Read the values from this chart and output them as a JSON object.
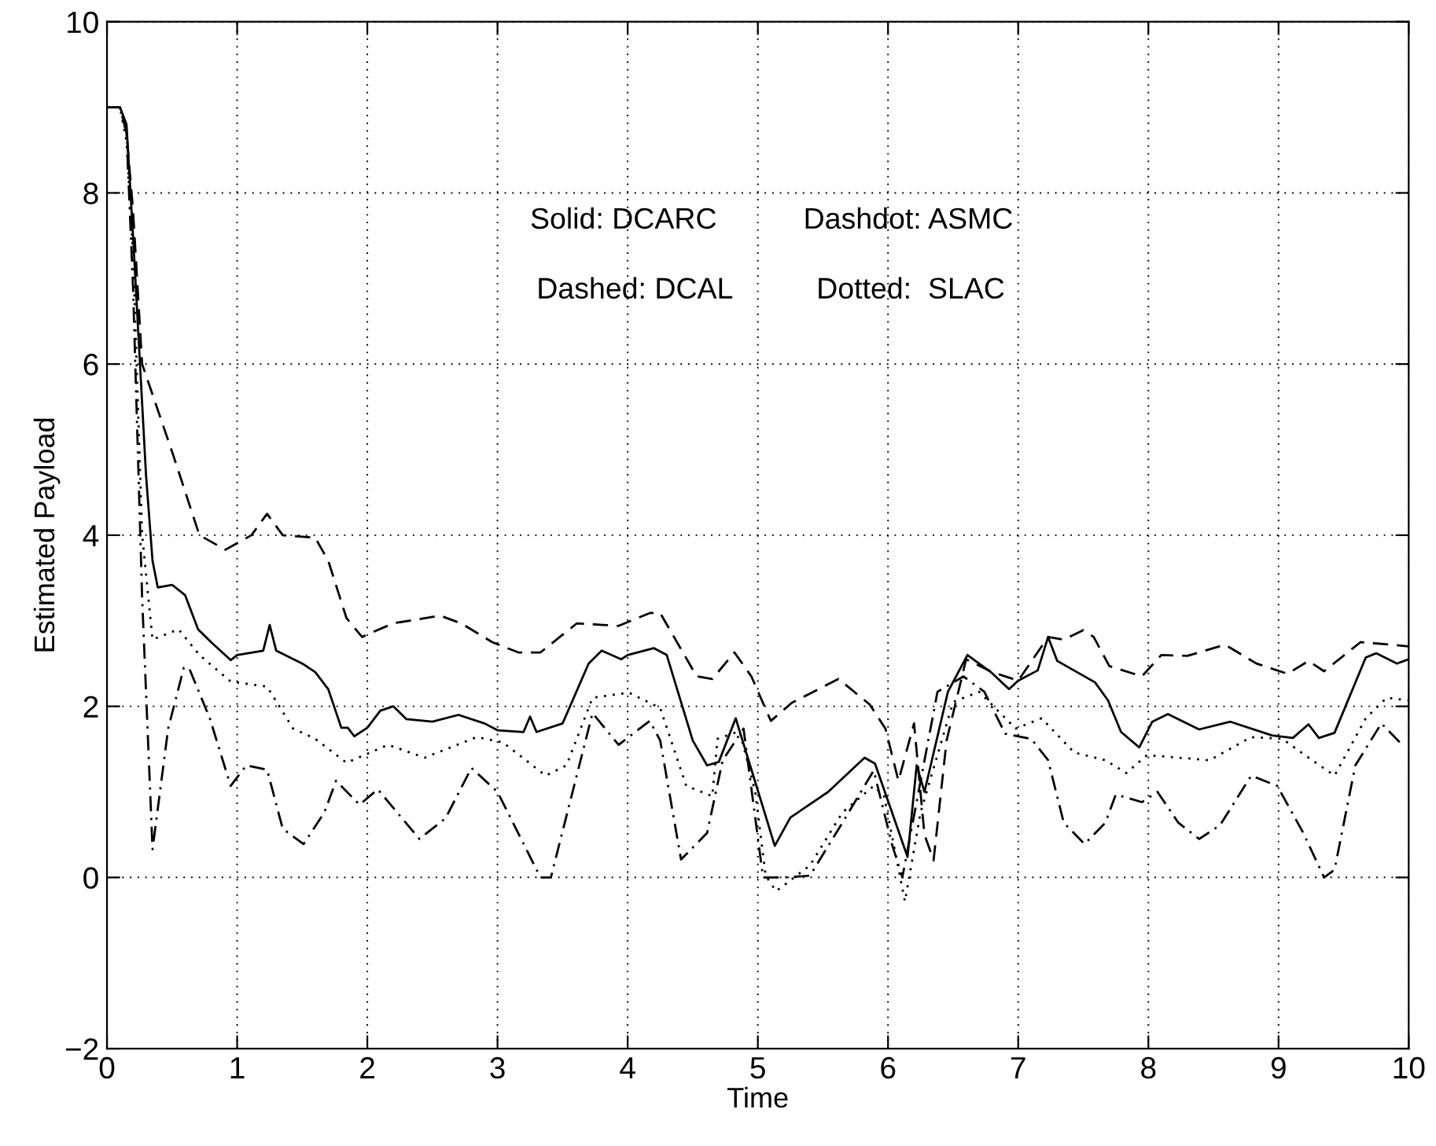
{
  "chart_data": {
    "type": "line",
    "xlabel": "Time",
    "ylabel": "Estimated Payload",
    "xlim": [
      0,
      10
    ],
    "ylim": [
      -2,
      10
    ],
    "xticks": [
      0,
      1,
      2,
      3,
      4,
      5,
      6,
      7,
      8,
      9,
      10
    ],
    "yticks": [
      -2,
      0,
      2,
      4,
      6,
      8,
      10
    ],
    "grid": true,
    "annotations": [
      "Solid: DCARC",
      "Dashdot: ASMC",
      "Dashed: DCAL",
      "Dotted:  SLAC"
    ],
    "series": [
      {
        "color": "#000000",
        "line_style": "solid",
        "x": [
          0,
          0.1,
          0.15,
          0.2,
          0.3,
          0.35,
          0.39,
          0.5,
          0.6,
          0.7,
          0.8,
          0.95,
          1.0,
          1.2,
          1.25,
          1.3,
          1.5,
          1.6,
          1.7,
          1.8,
          1.85,
          1.9,
          2.0,
          2.1,
          2.2,
          2.3,
          2.5,
          2.7,
          2.9,
          3.0,
          3.2,
          3.25,
          3.3,
          3.5,
          3.7,
          3.8,
          3.95,
          4.0,
          4.2,
          4.3,
          4.5,
          4.61,
          4.7,
          4.83,
          5.13,
          5.25,
          5.54,
          5.82,
          5.9,
          6.15,
          6.22,
          6.28,
          6.46,
          6.61,
          6.79,
          6.93,
          7.0,
          7.15,
          7.23,
          7.3,
          7.59,
          7.69,
          7.79,
          7.93,
          8.03,
          8.15,
          8.39,
          8.63,
          8.95,
          9.11,
          9.23,
          9.31,
          9.43,
          9.67,
          9.75,
          9.91,
          10
        ],
        "values": [
          9.0,
          9.0,
          8.8,
          7.5,
          4.7,
          3.7,
          3.39,
          3.42,
          3.3,
          2.9,
          2.75,
          2.54,
          2.6,
          2.65,
          2.95,
          2.65,
          2.5,
          2.4,
          2.2,
          1.75,
          1.75,
          1.65,
          1.75,
          1.95,
          2.0,
          1.85,
          1.82,
          1.9,
          1.8,
          1.72,
          1.7,
          1.88,
          1.7,
          1.8,
          2.5,
          2.65,
          2.55,
          2.6,
          2.68,
          2.6,
          1.6,
          1.31,
          1.35,
          1.86,
          0.37,
          0.7,
          1.0,
          1.4,
          1.33,
          0.24,
          1.31,
          1.0,
          2.17,
          2.6,
          2.4,
          2.2,
          2.3,
          2.42,
          2.81,
          2.53,
          2.28,
          2.07,
          1.7,
          1.52,
          1.82,
          1.91,
          1.73,
          1.82,
          1.66,
          1.63,
          1.79,
          1.63,
          1.69,
          2.57,
          2.62,
          2.5,
          2.55
        ]
      },
      {
        "color": "#000000",
        "line_style": "dashed",
        "x": [
          0,
          0.1,
          0.15,
          0.2,
          0.27,
          0.51,
          0.71,
          0.91,
          1.11,
          1.23,
          1.35,
          1.6,
          1.7,
          1.84,
          1.96,
          2.0,
          2.2,
          2.56,
          2.72,
          2.96,
          3.16,
          3.33,
          3.61,
          3.93,
          4.17,
          4.25,
          4.53,
          4.65,
          4.82,
          4.95,
          5.1,
          5.26,
          5.62,
          5.86,
          5.98,
          6.08,
          6.2,
          6.28,
          6.35,
          6.45,
          6.6,
          6.8,
          7.0,
          7.23,
          7.35,
          7.5,
          7.58,
          7.7,
          7.95,
          8.1,
          8.3,
          8.59,
          8.83,
          9.07,
          9.23,
          9.35,
          9.63,
          9.87,
          10
        ],
        "values": [
          9.0,
          9.0,
          8.7,
          7.8,
          6.0,
          4.93,
          4.0,
          3.83,
          4.0,
          4.25,
          4.0,
          3.97,
          3.7,
          3.03,
          2.81,
          2.84,
          2.97,
          3.06,
          2.97,
          2.75,
          2.63,
          2.63,
          2.97,
          2.94,
          3.09,
          3.09,
          2.35,
          2.32,
          2.63,
          2.35,
          1.83,
          2.04,
          2.32,
          2.02,
          1.74,
          1.13,
          1.8,
          0.5,
          0.2,
          1.6,
          2.55,
          2.4,
          2.3,
          2.81,
          2.78,
          2.89,
          2.81,
          2.47,
          2.35,
          2.6,
          2.59,
          2.72,
          2.5,
          2.38,
          2.53,
          2.41,
          2.75,
          2.72,
          2.7
        ]
      },
      {
        "color": "#000000",
        "line_style": "dashdot",
        "x": [
          0,
          0.1,
          0.15,
          0.2,
          0.27,
          0.35,
          0.47,
          0.59,
          0.63,
          0.79,
          0.95,
          1.07,
          1.23,
          1.35,
          1.51,
          1.67,
          1.76,
          1.94,
          2.08,
          2.4,
          2.6,
          2.8,
          3.0,
          3.33,
          3.41,
          3.73,
          3.93,
          4.17,
          4.25,
          4.41,
          4.61,
          4.73,
          4.89,
          5.04,
          5.2,
          5.4,
          5.65,
          5.89,
          6.03,
          6.11,
          6.38,
          6.58,
          6.74,
          6.9,
          7.1,
          7.23,
          7.35,
          7.51,
          7.67,
          7.75,
          7.95,
          8.07,
          8.23,
          8.39,
          8.55,
          8.79,
          8.99,
          9.19,
          9.35,
          9.43,
          9.59,
          9.79,
          9.95
        ],
        "values": [
          9.0,
          9.0,
          8.7,
          6.9,
          3.27,
          0.33,
          1.74,
          2.45,
          2.45,
          1.86,
          1.07,
          1.31,
          1.26,
          0.57,
          0.39,
          0.76,
          1.13,
          0.85,
          1.03,
          0.45,
          0.69,
          1.28,
          1.0,
          0.0,
          0.0,
          1.92,
          1.55,
          1.83,
          1.6,
          0.21,
          0.52,
          1.37,
          1.74,
          0.0,
          0.0,
          0.02,
          0.64,
          1.25,
          0.39,
          0.0,
          2.17,
          2.35,
          2.17,
          1.68,
          1.62,
          1.37,
          0.64,
          0.39,
          0.64,
          0.97,
          0.88,
          1.0,
          0.64,
          0.45,
          0.61,
          1.19,
          1.07,
          0.52,
          0.0,
          0.09,
          1.31,
          1.8,
          1.55
        ]
      },
      {
        "color": "#000000",
        "line_style": "dotted",
        "x": [
          0,
          0.1,
          0.15,
          0.2,
          0.27,
          0.35,
          0.55,
          0.71,
          0.95,
          1.23,
          1.43,
          1.6,
          1.84,
          2.16,
          2.44,
          2.84,
          3.04,
          3.37,
          3.53,
          3.73,
          4.01,
          4.25,
          4.45,
          4.65,
          4.69,
          4.86,
          4.98,
          5.06,
          5.14,
          5.4,
          5.65,
          5.89,
          5.97,
          6.13,
          6.25,
          6.5,
          6.7,
          6.98,
          7.18,
          7.43,
          7.67,
          7.83,
          7.99,
          8.23,
          8.47,
          8.79,
          9.03,
          9.23,
          9.43,
          9.67,
          9.83,
          10
        ],
        "values": [
          9.0,
          9.0,
          8.6,
          7.3,
          4.0,
          2.78,
          2.9,
          2.6,
          2.29,
          2.23,
          1.74,
          1.62,
          1.34,
          1.55,
          1.4,
          1.64,
          1.58,
          1.19,
          1.31,
          2.1,
          2.16,
          1.98,
          1.07,
          0.95,
          1.62,
          1.71,
          1.0,
          0.02,
          -0.16,
          0.14,
          0.76,
          1.07,
          0.95,
          -0.28,
          0.76,
          2.05,
          2.17,
          1.74,
          1.86,
          1.46,
          1.37,
          1.22,
          1.43,
          1.4,
          1.37,
          1.64,
          1.62,
          1.4,
          1.19,
          1.86,
          2.1,
          2.07
        ]
      }
    ]
  }
}
